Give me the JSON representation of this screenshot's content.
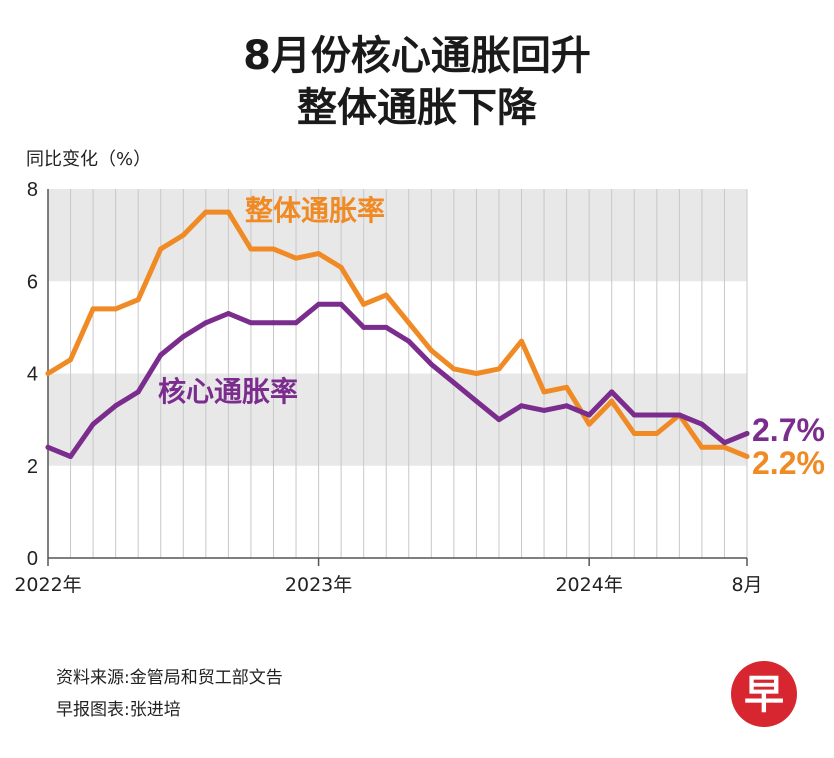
{
  "title_line1": "8月份核心通胀回升",
  "title_line2": "整体通胀下降",
  "source_line1": "资料来源:金管局和贸工部文告",
  "source_line2": "早报图表:张进培",
  "logo_char": "早",
  "colors": {
    "headline": "#f08a24",
    "core": "#7b2d8e",
    "band": "#e8e8e8",
    "grid": "#c8c8c8",
    "logo": "#d7262f"
  },
  "chart_data": {
    "type": "line",
    "ylabel": "同比变化（%）",
    "ylim": [
      0,
      8
    ],
    "yticks": [
      0,
      2,
      4,
      6,
      8
    ],
    "shaded_bands": [
      [
        2,
        4
      ],
      [
        6,
        8
      ]
    ],
    "grid": "vertical monthly lines",
    "xtick_labels": [
      {
        "index": 0,
        "label": "2022年"
      },
      {
        "index": 12,
        "label": "2023年"
      },
      {
        "index": 24,
        "label": "2024年"
      },
      {
        "index": 31,
        "label": "8月"
      }
    ],
    "x": [
      "2022-01",
      "2022-02",
      "2022-03",
      "2022-04",
      "2022-05",
      "2022-06",
      "2022-07",
      "2022-08",
      "2022-09",
      "2022-10",
      "2022-11",
      "2022-12",
      "2023-01",
      "2023-02",
      "2023-03",
      "2023-04",
      "2023-05",
      "2023-06",
      "2023-07",
      "2023-08",
      "2023-09",
      "2023-10",
      "2023-11",
      "2023-12",
      "2024-01",
      "2024-02",
      "2024-03",
      "2024-04",
      "2024-05",
      "2024-06",
      "2024-07",
      "2024-08"
    ],
    "series": [
      {
        "name": "整体通胀率",
        "color": "#f08a24",
        "end_label": "2.2%",
        "values": [
          4.0,
          4.3,
          5.4,
          5.4,
          5.6,
          6.7,
          7.0,
          7.5,
          7.5,
          6.7,
          6.7,
          6.5,
          6.6,
          6.3,
          5.5,
          5.7,
          5.1,
          4.5,
          4.1,
          4.0,
          4.1,
          4.7,
          3.6,
          3.7,
          2.9,
          3.4,
          2.7,
          2.7,
          3.1,
          2.4,
          2.4,
          2.2
        ]
      },
      {
        "name": "核心通胀率",
        "color": "#7b2d8e",
        "end_label": "2.7%",
        "values": [
          2.4,
          2.2,
          2.9,
          3.3,
          3.6,
          4.4,
          4.8,
          5.1,
          5.3,
          5.1,
          5.1,
          5.1,
          5.5,
          5.5,
          5.0,
          5.0,
          4.7,
          4.2,
          3.8,
          3.4,
          3.0,
          3.3,
          3.2,
          3.3,
          3.1,
          3.6,
          3.1,
          3.1,
          3.1,
          2.9,
          2.5,
          2.7
        ]
      }
    ]
  }
}
